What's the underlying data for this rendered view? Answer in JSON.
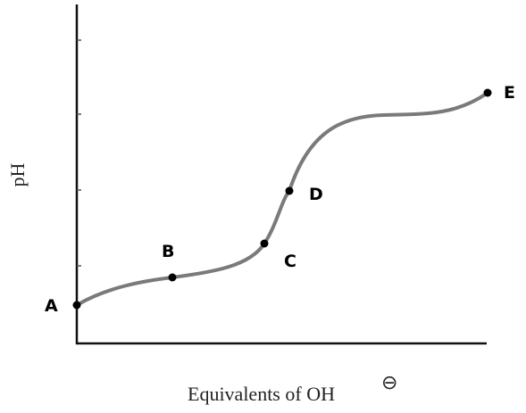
{
  "axes": {
    "y_label": "pH",
    "x_label": "Equivalents of OH",
    "x_label_superscript": "⊖"
  },
  "points": [
    {
      "label": "A"
    },
    {
      "label": "B"
    },
    {
      "label": "C"
    },
    {
      "label": "D"
    },
    {
      "label": "E"
    }
  ]
}
